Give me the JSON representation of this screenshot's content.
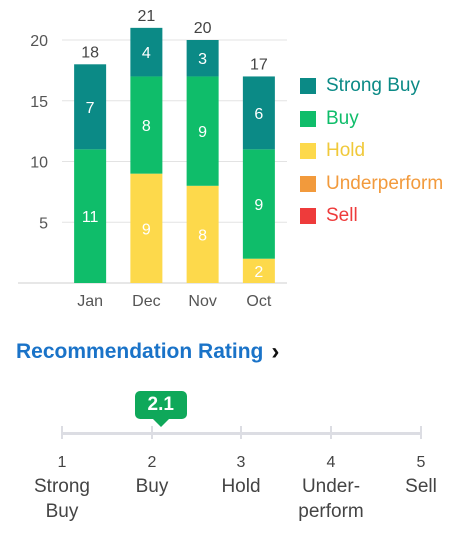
{
  "chart_data": {
    "type": "bar",
    "stacked": true,
    "categories": [
      "Jan",
      "Dec",
      "Nov",
      "Oct"
    ],
    "series": [
      {
        "name": "Sell",
        "color": "#ee3b3b",
        "values": [
          0,
          0,
          0,
          0
        ]
      },
      {
        "name": "Underperform",
        "color": "#f29a3c",
        "values": [
          0,
          0,
          0,
          0
        ]
      },
      {
        "name": "Hold",
        "color": "#fdd94b",
        "values": [
          0,
          9,
          8,
          2
        ]
      },
      {
        "name": "Buy",
        "color": "#0fbd6a",
        "values": [
          11,
          8,
          9,
          9
        ]
      },
      {
        "name": "Strong Buy",
        "color": "#0b8a86",
        "values": [
          7,
          4,
          3,
          6
        ]
      }
    ],
    "totals": [
      "18",
      "21",
      "20",
      "17"
    ],
    "y_ticks": [
      "5",
      "10",
      "15",
      "20"
    ],
    "ylim": [
      0,
      22
    ],
    "grid": true
  },
  "legend": [
    {
      "label": "Strong Buy",
      "color": "#0b8a86"
    },
    {
      "label": "Buy",
      "color": "#0fbd6a"
    },
    {
      "label": "Hold",
      "color": "#fdd94b"
    },
    {
      "label": "Underperform",
      "color": "#f29a3c"
    },
    {
      "label": "Sell",
      "color": "#ee3b3b"
    }
  ],
  "rating": {
    "title": "Recommendation Rating",
    "value": "2.1",
    "scale": [
      {
        "num": "1",
        "lines": [
          "Strong",
          "Buy"
        ]
      },
      {
        "num": "2",
        "lines": [
          "Buy"
        ]
      },
      {
        "num": "3",
        "lines": [
          "Hold"
        ]
      },
      {
        "num": "4",
        "lines": [
          "Under-",
          "perform"
        ]
      },
      {
        "num": "5",
        "lines": [
          "Sell"
        ]
      }
    ]
  }
}
